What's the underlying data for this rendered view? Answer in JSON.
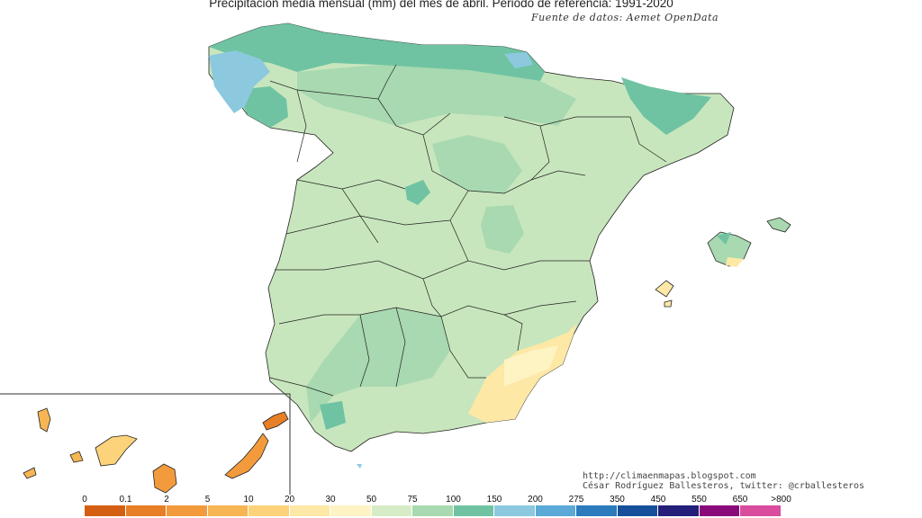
{
  "title": "Precipitación media mensual (mm) del mes de abril. Periodo de referencia: 1991-2020",
  "source": "Fuente de datos: Aemet OpenData",
  "credits": {
    "blog": "http://climaenmapas.blogspot.com",
    "author": "César Rodríguez Ballesteros, twitter: @crballesteros"
  },
  "legend": {
    "thresholds": [
      "0",
      "0.1",
      "2",
      "5",
      "10",
      "20",
      "30",
      "50",
      "75",
      "100",
      "150",
      "200",
      "275",
      "350",
      "450",
      "550",
      "650",
      ">800"
    ],
    "colors": [
      "#d45f12",
      "#e77f26",
      "#f39b3c",
      "#f7b553",
      "#fcd27b",
      "#fde8a6",
      "#fdf3c3",
      "#d6ecc6",
      "#a8d9b0",
      "#6fc3a2",
      "#8cc9df",
      "#5aa9d6",
      "#2b7bbd",
      "#16509a",
      "#231f7a",
      "#8a0a7c",
      "#d94c9e"
    ]
  },
  "palette": {
    "light_green": "#c8e6bd",
    "green": "#a8d9b0",
    "teal": "#6fc3a2",
    "blue": "#8cc9df",
    "cream": "#fde8a6",
    "orange": "#f39b3c"
  }
}
